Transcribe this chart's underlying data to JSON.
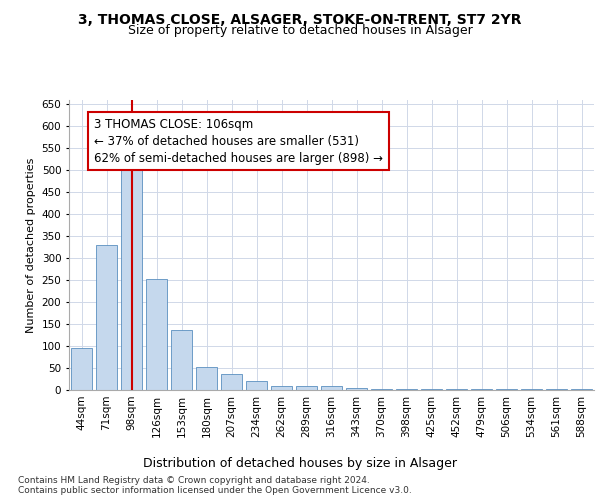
{
  "title1": "3, THOMAS CLOSE, ALSAGER, STOKE-ON-TRENT, ST7 2YR",
  "title2": "Size of property relative to detached houses in Alsager",
  "xlabel": "Distribution of detached houses by size in Alsager",
  "ylabel": "Number of detached properties",
  "categories": [
    "44sqm",
    "71sqm",
    "98sqm",
    "126sqm",
    "153sqm",
    "180sqm",
    "207sqm",
    "234sqm",
    "262sqm",
    "289sqm",
    "316sqm",
    "343sqm",
    "370sqm",
    "398sqm",
    "425sqm",
    "452sqm",
    "479sqm",
    "506sqm",
    "534sqm",
    "561sqm",
    "588sqm"
  ],
  "values": [
    95,
    330,
    505,
    253,
    137,
    53,
    36,
    20,
    8,
    10,
    10,
    5,
    3,
    2,
    2,
    2,
    2,
    2,
    2,
    2,
    3
  ],
  "bar_color": "#c5d8ed",
  "bar_edge_color": "#5a8fc0",
  "grid_color": "#d0d8e8",
  "background_color": "#ffffff",
  "annotation_line1": "3 THOMAS CLOSE: 106sqm",
  "annotation_line2": "← 37% of detached houses are smaller (531)",
  "annotation_line3": "62% of semi-detached houses are larger (898) →",
  "annotation_box_color": "#ffffff",
  "annotation_box_edge_color": "#cc0000",
  "vline_x_index": 2,
  "vline_color": "#cc0000",
  "ylim": [
    0,
    660
  ],
  "yticks": [
    0,
    50,
    100,
    150,
    200,
    250,
    300,
    350,
    400,
    450,
    500,
    550,
    600,
    650
  ],
  "footer_text": "Contains HM Land Registry data © Crown copyright and database right 2024.\nContains public sector information licensed under the Open Government Licence v3.0.",
  "title1_fontsize": 10,
  "title2_fontsize": 9,
  "xlabel_fontsize": 9,
  "ylabel_fontsize": 8,
  "tick_fontsize": 7.5,
  "annotation_fontsize": 8.5,
  "footer_fontsize": 6.5
}
